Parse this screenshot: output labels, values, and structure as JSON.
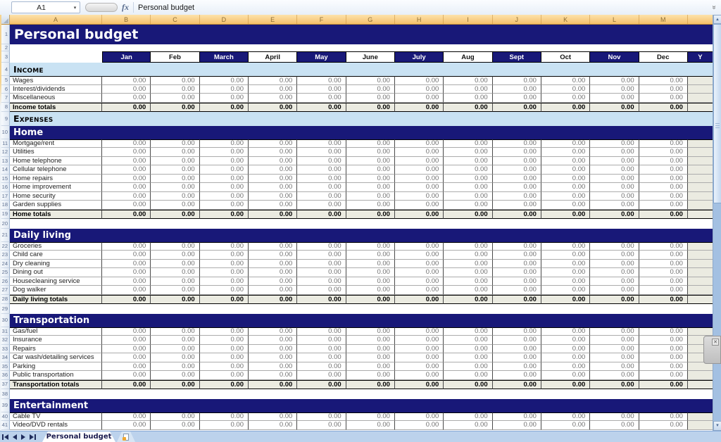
{
  "formula_bar": {
    "cell_ref": "A1",
    "fx": "fx",
    "formula": "Personal budget"
  },
  "icons": {
    "name_box_arrow": "▾",
    "expand_chevron": "»",
    "scroll_up": "▲",
    "scroll_down": "▼",
    "close": "✕"
  },
  "column_letters": [
    "A",
    "B",
    "C",
    "D",
    "E",
    "F",
    "G",
    "H",
    "I",
    "J",
    "K",
    "L",
    "M"
  ],
  "months_row": {
    "cells": [
      {
        "label": "Jan",
        "dark": true
      },
      {
        "label": "Feb",
        "dark": false
      },
      {
        "label": "March",
        "dark": true
      },
      {
        "label": "April",
        "dark": false
      },
      {
        "label": "May",
        "dark": true
      },
      {
        "label": "June",
        "dark": false
      },
      {
        "label": "July",
        "dark": true
      },
      {
        "label": "Aug",
        "dark": false
      },
      {
        "label": "Sept",
        "dark": true
      },
      {
        "label": "Oct",
        "dark": false
      },
      {
        "label": "Nov",
        "dark": true
      },
      {
        "label": "Dec",
        "dark": false
      }
    ],
    "year_partial_label": "Y"
  },
  "sheet": {
    "rows": [
      {
        "num": "1",
        "type": "title",
        "label": "Personal budget"
      },
      {
        "num": "2",
        "type": "blank"
      },
      {
        "num": "3",
        "type": "months"
      },
      {
        "num": "4",
        "type": "caps",
        "label": "Income"
      },
      {
        "num": "5",
        "type": "data",
        "label": "Wages",
        "values": [
          "0.00",
          "0.00",
          "0.00",
          "0.00",
          "0.00",
          "0.00",
          "0.00",
          "0.00",
          "0.00",
          "0.00",
          "0.00",
          "0.00"
        ]
      },
      {
        "num": "6",
        "type": "data",
        "label": "Interest/dividends",
        "values": [
          "0.00",
          "0.00",
          "0.00",
          "0.00",
          "0.00",
          "0.00",
          "0.00",
          "0.00",
          "0.00",
          "0.00",
          "0.00",
          "0.00"
        ]
      },
      {
        "num": "7",
        "type": "data",
        "label": "Miscellaneous",
        "values": [
          "0.00",
          "0.00",
          "0.00",
          "0.00",
          "0.00",
          "0.00",
          "0.00",
          "0.00",
          "0.00",
          "0.00",
          "0.00",
          "0.00"
        ]
      },
      {
        "num": "8",
        "type": "total",
        "label": "Income totals",
        "values": [
          "0.00",
          "0.00",
          "0.00",
          "0.00",
          "0.00",
          "0.00",
          "0.00",
          "0.00",
          "0.00",
          "0.00",
          "0.00",
          "0.00"
        ]
      },
      {
        "num": "9",
        "type": "caps",
        "label": "Expenses"
      },
      {
        "num": "10",
        "type": "section",
        "label": "Home"
      },
      {
        "num": "11",
        "type": "data",
        "label": "Mortgage/rent",
        "values": [
          "0.00",
          "0.00",
          "0.00",
          "0.00",
          "0.00",
          "0.00",
          "0.00",
          "0.00",
          "0.00",
          "0.00",
          "0.00",
          "0.00"
        ]
      },
      {
        "num": "12",
        "type": "data",
        "label": "Utilities",
        "values": [
          "0.00",
          "0.00",
          "0.00",
          "0.00",
          "0.00",
          "0.00",
          "0.00",
          "0.00",
          "0.00",
          "0.00",
          "0.00",
          "0.00"
        ]
      },
      {
        "num": "13",
        "type": "data",
        "label": "Home telephone",
        "values": [
          "0.00",
          "0.00",
          "0.00",
          "0.00",
          "0.00",
          "0.00",
          "0.00",
          "0.00",
          "0.00",
          "0.00",
          "0.00",
          "0.00"
        ]
      },
      {
        "num": "14",
        "type": "data",
        "label": "Cellular telephone",
        "values": [
          "0.00",
          "0.00",
          "0.00",
          "0.00",
          "0.00",
          "0.00",
          "0.00",
          "0.00",
          "0.00",
          "0.00",
          "0.00",
          "0.00"
        ]
      },
      {
        "num": "15",
        "type": "data",
        "label": "Home repairs",
        "values": [
          "0.00",
          "0.00",
          "0.00",
          "0.00",
          "0.00",
          "0.00",
          "0.00",
          "0.00",
          "0.00",
          "0.00",
          "0.00",
          "0.00"
        ]
      },
      {
        "num": "16",
        "type": "data",
        "label": "Home improvement",
        "values": [
          "0.00",
          "0.00",
          "0.00",
          "0.00",
          "0.00",
          "0.00",
          "0.00",
          "0.00",
          "0.00",
          "0.00",
          "0.00",
          "0.00"
        ]
      },
      {
        "num": "17",
        "type": "data",
        "label": "Home security",
        "values": [
          "0.00",
          "0.00",
          "0.00",
          "0.00",
          "0.00",
          "0.00",
          "0.00",
          "0.00",
          "0.00",
          "0.00",
          "0.00",
          "0.00"
        ]
      },
      {
        "num": "18",
        "type": "data",
        "label": "Garden supplies",
        "values": [
          "0.00",
          "0.00",
          "0.00",
          "0.00",
          "0.00",
          "0.00",
          "0.00",
          "0.00",
          "0.00",
          "0.00",
          "0.00",
          "0.00"
        ]
      },
      {
        "num": "19",
        "type": "total",
        "label": "Home totals",
        "values": [
          "0.00",
          "0.00",
          "0.00",
          "0.00",
          "0.00",
          "0.00",
          "0.00",
          "0.00",
          "0.00",
          "0.00",
          "0.00",
          "0.00"
        ]
      },
      {
        "num": "20",
        "type": "blank"
      },
      {
        "num": "21",
        "type": "section",
        "label": "Daily living"
      },
      {
        "num": "22",
        "type": "data",
        "label": "Groceries",
        "values": [
          "0.00",
          "0.00",
          "0.00",
          "0.00",
          "0.00",
          "0.00",
          "0.00",
          "0.00",
          "0.00",
          "0.00",
          "0.00",
          "0.00"
        ]
      },
      {
        "num": "23",
        "type": "data",
        "label": "Child care",
        "values": [
          "0.00",
          "0.00",
          "0.00",
          "0.00",
          "0.00",
          "0.00",
          "0.00",
          "0.00",
          "0.00",
          "0.00",
          "0.00",
          "0.00"
        ]
      },
      {
        "num": "24",
        "type": "data",
        "label": "Dry cleaning",
        "values": [
          "0.00",
          "0.00",
          "0.00",
          "0.00",
          "0.00",
          "0.00",
          "0.00",
          "0.00",
          "0.00",
          "0.00",
          "0.00",
          "0.00"
        ]
      },
      {
        "num": "25",
        "type": "data",
        "label": "Dining out",
        "values": [
          "0.00",
          "0.00",
          "0.00",
          "0.00",
          "0.00",
          "0.00",
          "0.00",
          "0.00",
          "0.00",
          "0.00",
          "0.00",
          "0.00"
        ]
      },
      {
        "num": "26",
        "type": "data",
        "label": "Housecleaning service",
        "values": [
          "0.00",
          "0.00",
          "0.00",
          "0.00",
          "0.00",
          "0.00",
          "0.00",
          "0.00",
          "0.00",
          "0.00",
          "0.00",
          "0.00"
        ]
      },
      {
        "num": "27",
        "type": "data",
        "label": "Dog walker",
        "values": [
          "0.00",
          "0.00",
          "0.00",
          "0.00",
          "0.00",
          "0.00",
          "0.00",
          "0.00",
          "0.00",
          "0.00",
          "0.00",
          "0.00"
        ]
      },
      {
        "num": "28",
        "type": "total",
        "label": "Daily living totals",
        "values": [
          "0.00",
          "0.00",
          "0.00",
          "0.00",
          "0.00",
          "0.00",
          "0.00",
          "0.00",
          "0.00",
          "0.00",
          "0.00",
          "0.00"
        ]
      },
      {
        "num": "29",
        "type": "blank"
      },
      {
        "num": "30",
        "type": "section",
        "label": "Transportation"
      },
      {
        "num": "31",
        "type": "data",
        "label": "Gas/fuel",
        "values": [
          "0.00",
          "0.00",
          "0.00",
          "0.00",
          "0.00",
          "0.00",
          "0.00",
          "0.00",
          "0.00",
          "0.00",
          "0.00",
          "0.00"
        ]
      },
      {
        "num": "32",
        "type": "data",
        "label": "Insurance",
        "values": [
          "0.00",
          "0.00",
          "0.00",
          "0.00",
          "0.00",
          "0.00",
          "0.00",
          "0.00",
          "0.00",
          "0.00",
          "0.00",
          "0.00"
        ]
      },
      {
        "num": "33",
        "type": "data",
        "label": "Repairs",
        "values": [
          "0.00",
          "0.00",
          "0.00",
          "0.00",
          "0.00",
          "0.00",
          "0.00",
          "0.00",
          "0.00",
          "0.00",
          "0.00",
          "0.00"
        ]
      },
      {
        "num": "34",
        "type": "data",
        "label": "Car wash/detailing services",
        "values": [
          "0.00",
          "0.00",
          "0.00",
          "0.00",
          "0.00",
          "0.00",
          "0.00",
          "0.00",
          "0.00",
          "0.00",
          "0.00",
          "0.00"
        ]
      },
      {
        "num": "35",
        "type": "data",
        "label": "Parking",
        "values": [
          "0.00",
          "0.00",
          "0.00",
          "0.00",
          "0.00",
          "0.00",
          "0.00",
          "0.00",
          "0.00",
          "0.00",
          "0.00",
          "0.00"
        ]
      },
      {
        "num": "36",
        "type": "data",
        "label": "Public transportation",
        "values": [
          "0.00",
          "0.00",
          "0.00",
          "0.00",
          "0.00",
          "0.00",
          "0.00",
          "0.00",
          "0.00",
          "0.00",
          "0.00",
          "0.00"
        ]
      },
      {
        "num": "37",
        "type": "total",
        "label": "Transportation totals",
        "values": [
          "0.00",
          "0.00",
          "0.00",
          "0.00",
          "0.00",
          "0.00",
          "0.00",
          "0.00",
          "0.00",
          "0.00",
          "0.00",
          "0.00"
        ]
      },
      {
        "num": "38",
        "type": "blank"
      },
      {
        "num": "39",
        "type": "section",
        "label": "Entertainment"
      },
      {
        "num": "40",
        "type": "data",
        "label": "Cable TV",
        "values": [
          "0.00",
          "0.00",
          "0.00",
          "0.00",
          "0.00",
          "0.00",
          "0.00",
          "0.00",
          "0.00",
          "0.00",
          "0.00",
          "0.00"
        ]
      },
      {
        "num": "41",
        "type": "data",
        "label": "Video/DVD rentals",
        "values": [
          "0.00",
          "0.00",
          "0.00",
          "0.00",
          "0.00",
          "0.00",
          "0.00",
          "0.00",
          "0.00",
          "0.00",
          "0.00",
          "0.00"
        ]
      }
    ],
    "group_start_rows": [
      "5",
      "11",
      "22",
      "31",
      "40"
    ]
  },
  "tab_bar": {
    "active_tab": "Personal budget"
  },
  "colors": {
    "navy": "#181878",
    "caps_blue": "#C9E2F3",
    "totals_gray": "#EBEBE1",
    "header_orange": "#F5C06A"
  }
}
